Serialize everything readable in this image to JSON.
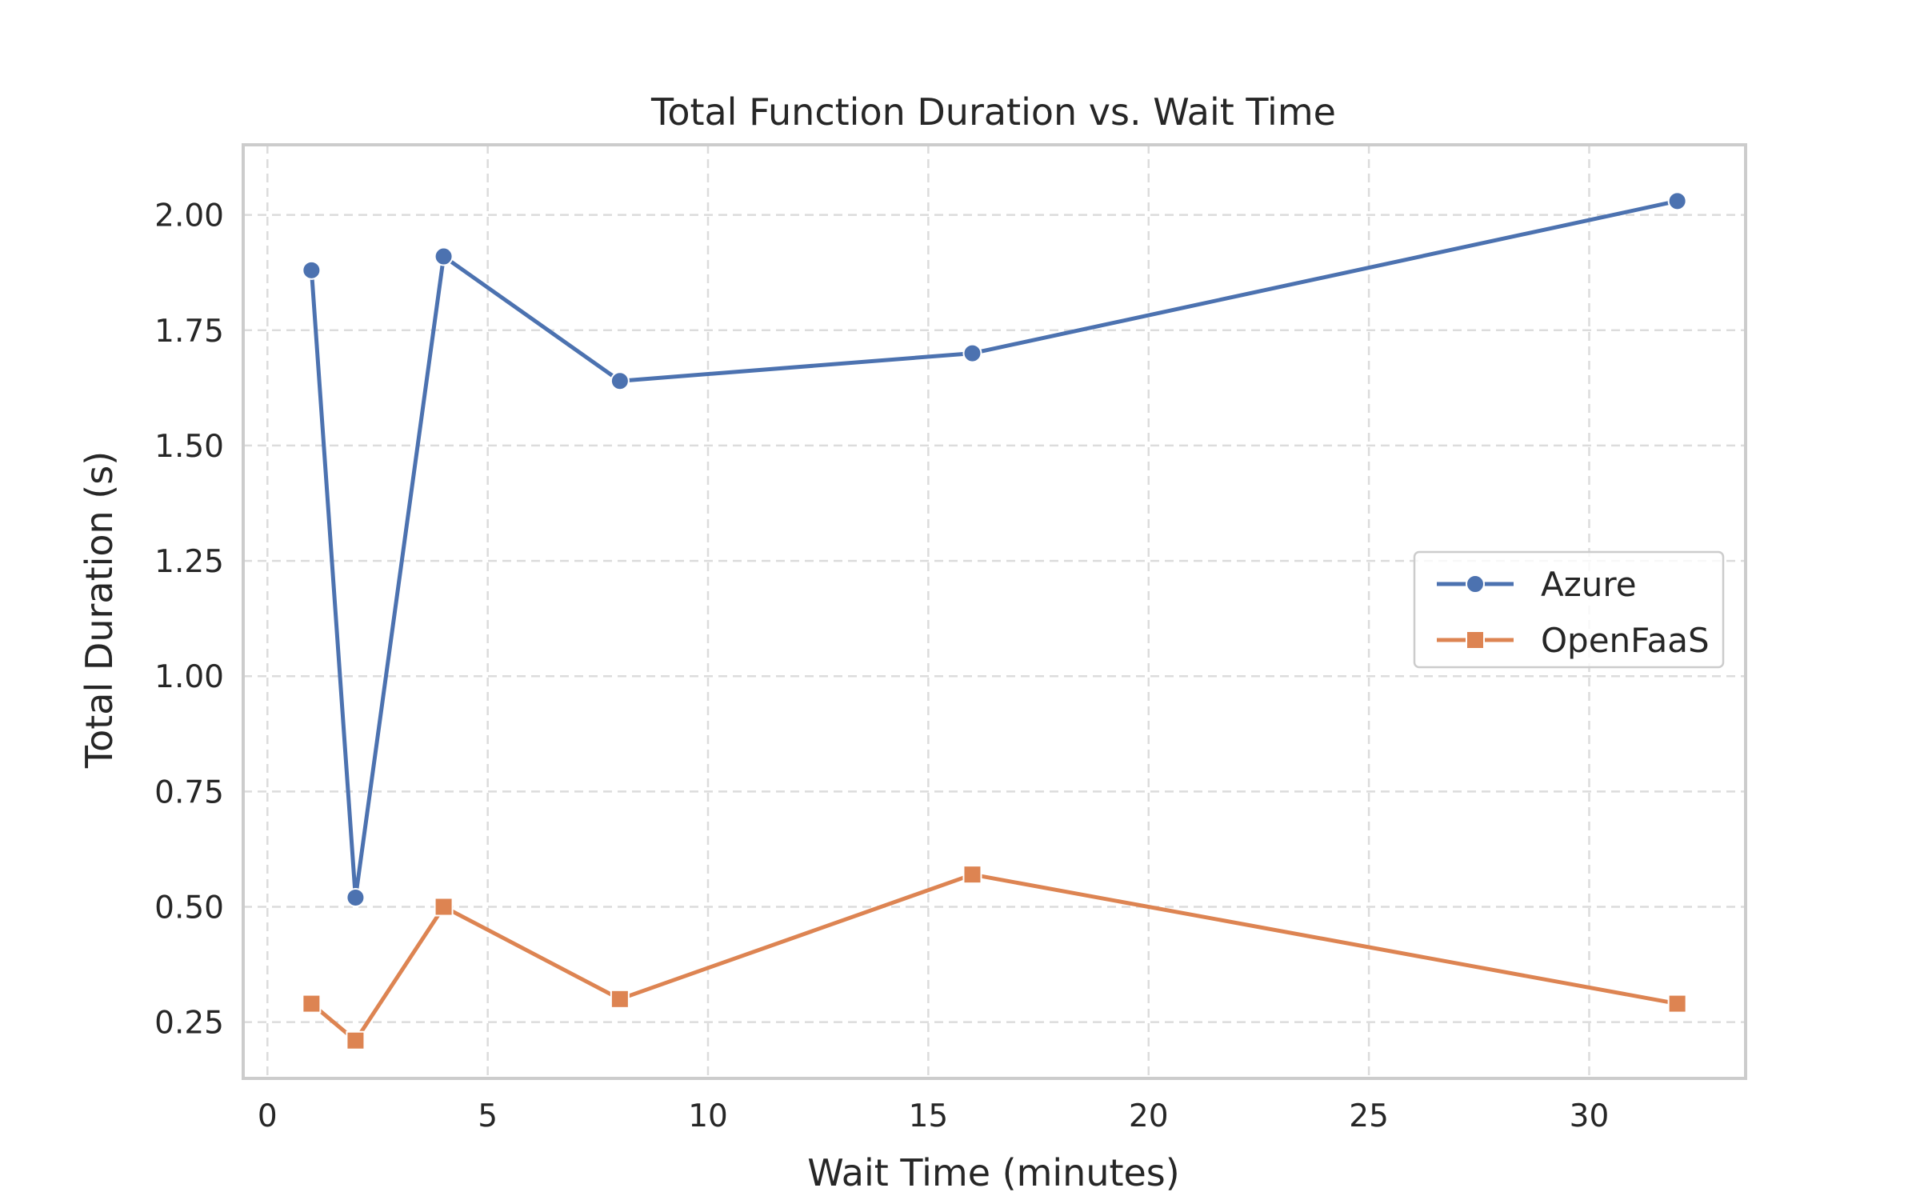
{
  "chart_data": {
    "type": "line",
    "title": "Total Function Duration vs. Wait Time",
    "xlabel": "Wait Time (minutes)",
    "ylabel": "Total Duration (s)",
    "x": [
      1,
      2,
      4,
      8,
      16,
      32
    ],
    "series": [
      {
        "name": "Azure",
        "values": [
          1.88,
          0.52,
          1.91,
          1.64,
          1.7,
          2.03
        ],
        "color": "#4c72b0",
        "marker": "circle"
      },
      {
        "name": "OpenFaaS",
        "values": [
          0.29,
          0.21,
          0.5,
          0.3,
          0.57,
          0.29
        ],
        "color": "#dd8452",
        "marker": "square"
      }
    ],
    "xlim": [
      -0.55,
      33.55
    ],
    "ylim": [
      0.128,
      2.152
    ],
    "xticks": [
      0,
      5,
      10,
      15,
      20,
      25,
      30
    ],
    "yticks": [
      0.25,
      0.5,
      0.75,
      1.0,
      1.25,
      1.5,
      1.75,
      2.0
    ],
    "ytick_labels": [
      "0.25",
      "0.50",
      "0.75",
      "1.00",
      "1.25",
      "1.50",
      "1.75",
      "2.00"
    ],
    "grid": true,
    "legend_position": "center-right"
  }
}
